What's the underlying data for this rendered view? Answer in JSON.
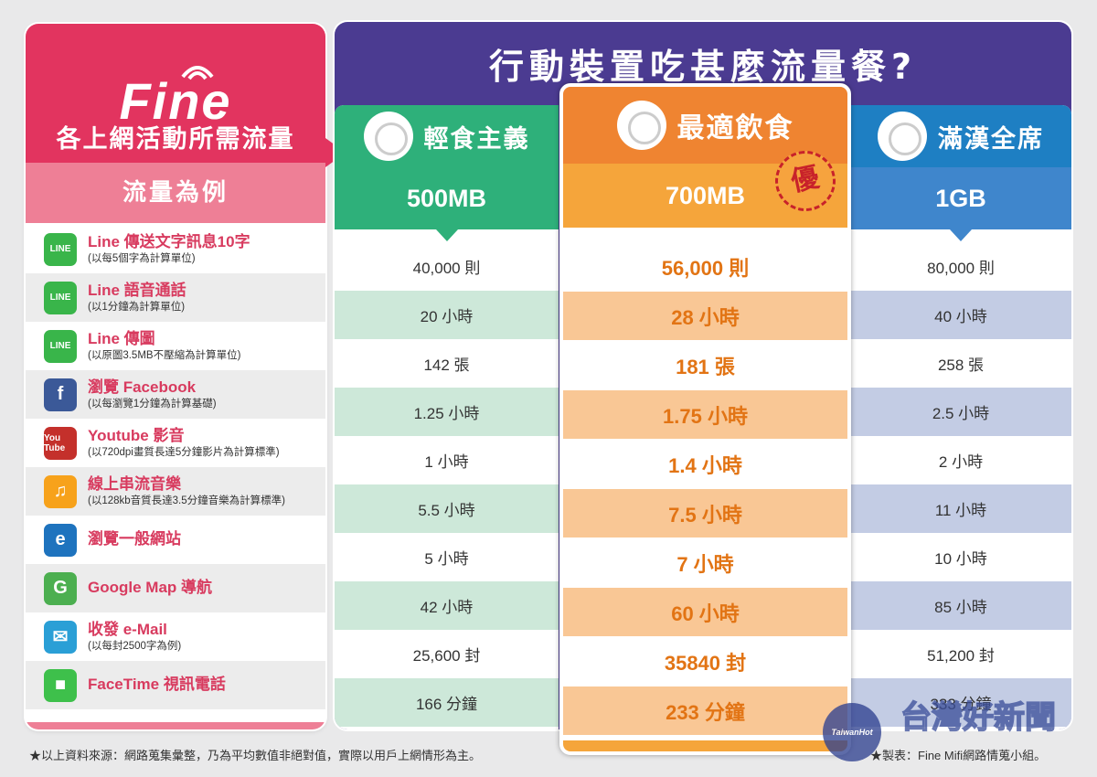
{
  "left": {
    "brand": "Fine",
    "heading": "各上網活動所需流量",
    "subheading": "流量為例",
    "activities": [
      {
        "name": "Line 傳送文字訊息10字",
        "note": "(以每5個字為計算單位)",
        "icon": "line-icon",
        "icon_text": "LINE",
        "color": "#39b54a"
      },
      {
        "name": "Line 語音通話",
        "note": "(以1分鐘為計算單位)",
        "icon": "line-call-icon",
        "icon_text": "LINE",
        "color": "#39b54a"
      },
      {
        "name": "Line 傳圖",
        "note": "(以原圖3.5MB不壓縮為計算單位)",
        "icon": "line-icon",
        "icon_text": "LINE",
        "color": "#39b54a"
      },
      {
        "name": "瀏覽 Facebook",
        "note": "(以每瀏覽1分鐘為計算基礎)",
        "icon": "facebook-icon",
        "icon_text": "f",
        "color": "#3b5998"
      },
      {
        "name": "Youtube 影音",
        "note": "(以720dpi畫質長達5分鐘影片為計算標準)",
        "icon": "youtube-icon",
        "icon_text": "You Tube",
        "color": "#c4302b"
      },
      {
        "name": "線上串流音樂",
        "note": "(以128kb音質長達3.5分鐘音樂為計算標準)",
        "icon": "music-note-icon",
        "icon_text": "♫",
        "color": "#f7a21b"
      },
      {
        "name": "瀏覽一般網站",
        "note": "",
        "icon": "internet-explorer-icon",
        "icon_text": "e",
        "color": "#1e73be"
      },
      {
        "name": "Google Map 導航",
        "note": "",
        "icon": "google-maps-icon",
        "icon_text": "G",
        "color": "#4caf50"
      },
      {
        "name": "收發 e-Mail",
        "note": "(以每封2500字為例)",
        "icon": "mail-icon",
        "icon_text": "✉",
        "color": "#2a9fd6"
      },
      {
        "name": "FaceTime 視訊電話",
        "note": "",
        "icon": "facetime-icon",
        "icon_text": "■",
        "color": "#3ec04b"
      }
    ]
  },
  "title": "行動裝置吃甚麼流量餐?",
  "plans": {
    "light": {
      "name": "輕食主義",
      "plan": "500MB",
      "values": [
        "40,000 則",
        "20 小時",
        "142 張",
        "1.25 小時",
        "1 小時",
        "5.5 小時",
        "5 小時",
        "42 小時",
        "25,600 封",
        "166 分鐘"
      ]
    },
    "best": {
      "name": "最適飲食",
      "plan": "700MB",
      "badge": "優",
      "values": [
        "56,000 則",
        "28 小時",
        "181 張",
        "1.75 小時",
        "1.4 小時",
        "7.5 小時",
        "7 小時",
        "60 小時",
        "35840 封",
        "233 分鐘"
      ]
    },
    "full": {
      "name": "滿漢全席",
      "plan": "1GB",
      "values": [
        "80,000 則",
        "40 小時",
        "258 張",
        "2.5 小時",
        "2 小時",
        "11 小時",
        "10 小時",
        "85 小時",
        "51,200 封",
        "333 分鐘"
      ]
    }
  },
  "footnotes": {
    "source": "★以上資料來源：網路蒐集彙整，乃為平均數值非絕對值，實際以用戶上網情形為主。",
    "maker": "★製表：Fine Mifi網路情蒐小組。"
  },
  "watermark": {
    "logo": "TaiwanHot",
    "name": "台灣好新聞"
  },
  "colors": {
    "brand_pink": "#e2345f",
    "header_purple": "#4b3b91",
    "light_green": "#2eb07a",
    "best_orange": "#ef8431",
    "full_blue": "#1e7fc3"
  }
}
